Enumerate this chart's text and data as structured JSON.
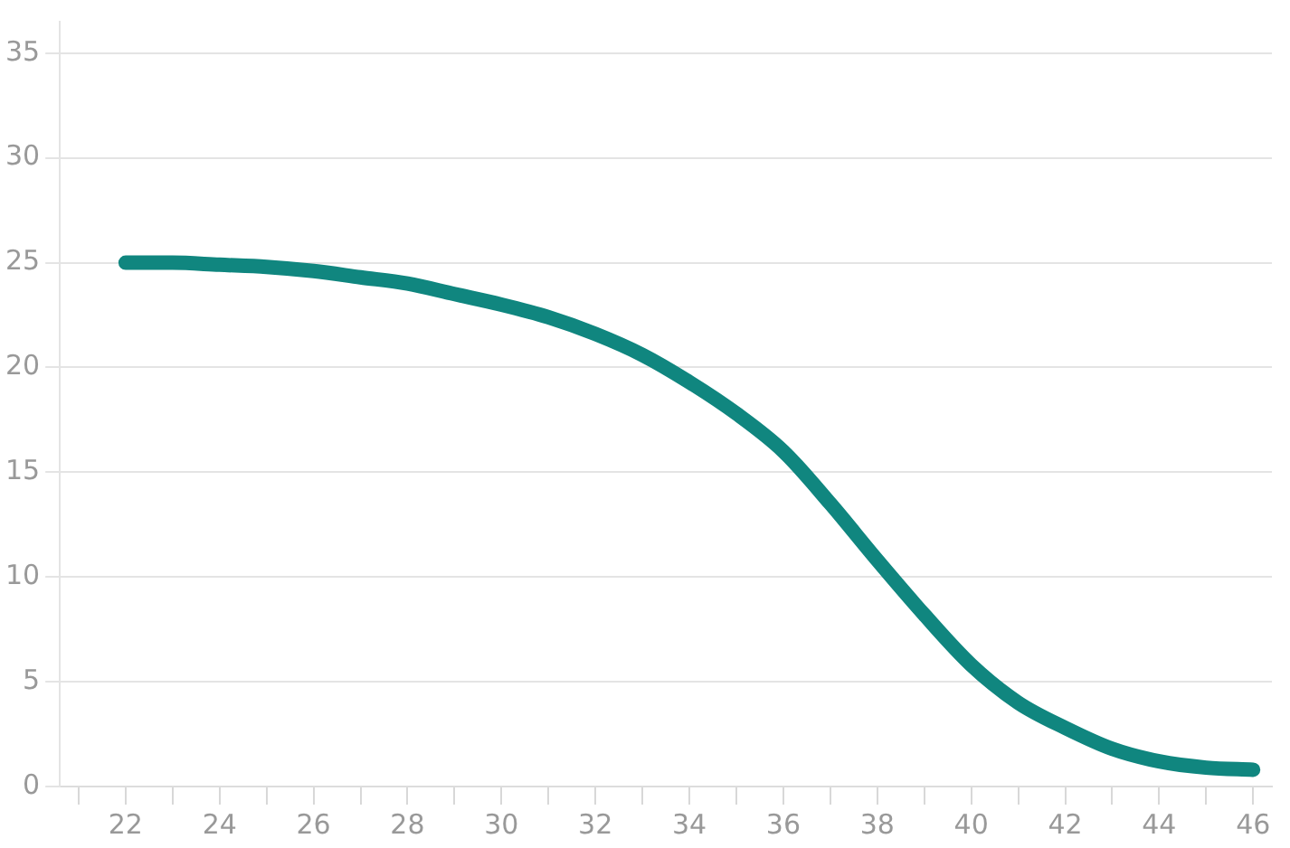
{
  "chart_data": {
    "type": "line",
    "x": [
      22,
      23,
      24,
      25,
      26,
      27,
      28,
      29,
      30,
      31,
      32,
      33,
      34,
      35,
      36,
      37,
      38,
      39,
      40,
      41,
      42,
      43,
      44,
      45,
      46
    ],
    "series": [
      {
        "color": "#10867f",
        "values": [
          25,
          25,
          24.9,
          24.8,
          24.6,
          24.3,
          24,
          23.5,
          23,
          22.4,
          21.6,
          20.6,
          19.3,
          17.8,
          16,
          13.5,
          10.8,
          8.2,
          5.8,
          4,
          2.8,
          1.8,
          1.2,
          0.9,
          0.8
        ]
      }
    ],
    "xlim": [
      20.6,
      46.4
    ],
    "xticks": [
      {
        "value": 21,
        "label": null
      },
      22,
      {
        "value": 23,
        "label": null
      },
      24,
      {
        "value": 25,
        "label": null
      },
      26,
      {
        "value": 27,
        "label": null
      },
      28,
      {
        "value": 29,
        "label": null
      },
      30,
      {
        "value": 31,
        "label": null
      },
      32,
      {
        "value": 33,
        "label": null
      },
      34,
      {
        "value": 35,
        "label": null
      },
      36,
      {
        "value": 37,
        "label": null
      },
      38,
      {
        "value": 39,
        "label": null
      },
      40,
      {
        "value": 41,
        "label": null
      },
      42,
      {
        "value": 43,
        "label": null
      },
      44,
      {
        "value": 45,
        "label": null
      },
      46
    ],
    "ylim": [
      0,
      36.5
    ],
    "yticks": [
      0,
      5,
      10,
      15,
      20,
      25,
      30,
      35
    ],
    "grid": "y",
    "marker": "none",
    "line_style": "solid",
    "legend": false
  }
}
